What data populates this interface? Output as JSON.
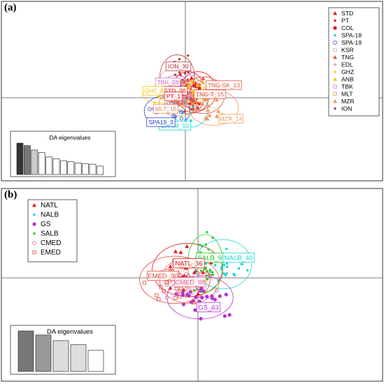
{
  "panels": [
    {
      "id": "a",
      "label": "(a)",
      "eig_title": "DA eigenvalues"
    },
    {
      "id": "b",
      "label": "(b)",
      "eig_title": "DA eigenvalues"
    }
  ],
  "chart_data": [
    {
      "panel": "(a)",
      "type": "scatter",
      "title": "",
      "legend_position": "top-right",
      "grid": false,
      "xlim": [
        -10,
        10
      ],
      "ylim": [
        -10,
        10
      ],
      "series": [
        {
          "name": "STD",
          "color": "#e41a1c",
          "marker": "triangle",
          "centroid": [
            0.3,
            0.6
          ],
          "ellipse": [
            1.8,
            2.4,
            0
          ]
        },
        {
          "name": "PT",
          "color": "#e41a1c",
          "marker": "dot",
          "centroid": [
            0.9,
            0.2
          ],
          "ellipse": [
            1.6,
            1.9,
            0
          ]
        },
        {
          "name": "COL",
          "color": "#e41a1c",
          "marker": "circle-filled",
          "centroid": [
            1.4,
            0.8
          ],
          "ellipse": [
            1.9,
            2.2,
            0
          ]
        },
        {
          "name": "SPA-18",
          "color": "#17d6d6",
          "marker": "dot",
          "centroid": [
            0.6,
            -1.5
          ],
          "ellipse": [
            1.8,
            1.9,
            0
          ]
        },
        {
          "name": "SPA-19",
          "color": "#2b3fd3",
          "marker": "circle-open",
          "centroid": [
            -2.0,
            -1.6
          ],
          "ellipse": [
            2.4,
            1.8,
            0
          ]
        },
        {
          "name": "KSR",
          "color": "#d8a0d8",
          "marker": "square-open",
          "centroid": [
            -0.8,
            1.6
          ],
          "ellipse": [
            2.1,
            2.0,
            0
          ]
        },
        {
          "name": "TNG",
          "color": "#e5533d",
          "marker": "triangle",
          "centroid": [
            2.0,
            0.3
          ],
          "ellipse": [
            2.2,
            2.1,
            0
          ]
        },
        {
          "name": "EDL",
          "color": "#f08080",
          "marker": "plus",
          "centroid": [
            0.5,
            0.5
          ],
          "ellipse": [
            1.5,
            1.5,
            0
          ]
        },
        {
          "name": "GHZ",
          "color": "#f5c518",
          "marker": "dot",
          "centroid": [
            -2.3,
            0.4
          ],
          "ellipse": [
            2.3,
            1.0,
            0
          ]
        },
        {
          "name": "ANB",
          "color": "#f5c518",
          "marker": "triangle",
          "centroid": [
            1.1,
            0.8
          ],
          "ellipse": [
            1.3,
            1.3,
            0
          ]
        },
        {
          "name": "TBK",
          "color": "#d070d0",
          "marker": "square-open",
          "centroid": [
            -1.0,
            1.0
          ],
          "ellipse": [
            1.6,
            1.6,
            0
          ]
        },
        {
          "name": "MLT",
          "color": "#e8905a",
          "marker": "square-open",
          "centroid": [
            -0.8,
            -0.7
          ],
          "ellipse": [
            2.0,
            1.4,
            0
          ]
        },
        {
          "name": "MZR",
          "color": "#f09a60",
          "marker": "triangle",
          "centroid": [
            3.1,
            -1.2
          ],
          "ellipse": [
            2.6,
            2.0,
            0
          ]
        },
        {
          "name": "ION",
          "color": "#c0393b",
          "marker": "dot",
          "centroid": [
            -0.9,
            2.6
          ],
          "ellipse": [
            1.8,
            2.4,
            0
          ]
        }
      ],
      "centroid_labels": [
        {
          "text": "ION_30",
          "series": "ION"
        },
        {
          "text": "TBK_28",
          "series": "TBK"
        },
        {
          "text": "STD_26",
          "series": "STD"
        },
        {
          "text": "GHZ_8",
          "series": "GHZ"
        },
        {
          "text": "ANB",
          "series": "ANB"
        },
        {
          "text": "TNG-SK_13",
          "series": "TNG"
        },
        {
          "text": "TNG-T_15",
          "series": "TNG"
        },
        {
          "text": "PT_1",
          "series": "PT"
        },
        {
          "text": "MLT_16",
          "series": "MLT"
        },
        {
          "text": "SPA18_10",
          "series": "SPA-18"
        },
        {
          "text": "SPA19_3",
          "series": "SPA-19"
        },
        {
          "text": "MZR_14",
          "series": "MZR"
        }
      ],
      "eigenvalues": {
        "title": "DA eigenvalues",
        "values": [
          1.0,
          0.92,
          0.78,
          0.7,
          0.56,
          0.5,
          0.44,
          0.41,
          0.37,
          0.35,
          0.33,
          0.27
        ],
        "colors": [
          "#333333",
          "#777777",
          "#cccccc",
          "#ffffff",
          "#ffffff",
          "#ffffff",
          "#ffffff",
          "#ffffff",
          "#ffffff",
          "#ffffff",
          "#ffffff",
          "#ffffff"
        ]
      }
    },
    {
      "panel": "(b)",
      "type": "scatter",
      "title": "",
      "legend_position": "top-left",
      "grid": false,
      "xlim": [
        -10,
        10
      ],
      "ylim": [
        -10,
        10
      ],
      "series": [
        {
          "name": "NATL",
          "color": "#e41a1c",
          "marker": "triangle",
          "centroid": [
            -1.0,
            0.8
          ],
          "ellipse": [
            3.2,
            2.6,
            0
          ]
        },
        {
          "name": "NALB",
          "color": "#17d6d6",
          "marker": "dot",
          "centroid": [
            2.4,
            1.4
          ],
          "ellipse": [
            2.6,
            2.4,
            0
          ]
        },
        {
          "name": "GS",
          "color": "#b233d6",
          "marker": "circle-filled",
          "centroid": [
            0.2,
            -2.0
          ],
          "ellipse": [
            3.0,
            2.1,
            0
          ]
        },
        {
          "name": "SALB",
          "color": "#22cc22",
          "marker": "dot",
          "centroid": [
            0.7,
            1.5
          ],
          "ellipse": [
            1.6,
            2.8,
            0
          ]
        },
        {
          "name": "CMED",
          "color": "#e85c8a",
          "marker": "circle-open",
          "centroid": [
            -0.8,
            -0.3
          ],
          "ellipse": [
            2.7,
            2.2,
            0
          ]
        },
        {
          "name": "EMED",
          "color": "#e04a3b",
          "marker": "square-open",
          "centroid": [
            -2.2,
            -0.2
          ],
          "ellipse": [
            3.2,
            2.3,
            0
          ]
        }
      ],
      "centroid_labels": [
        {
          "text": "SALB_9",
          "series": "SALB"
        },
        {
          "text": "NALB_40",
          "series": "NALB"
        },
        {
          "text": "NATL_36",
          "series": "NATL"
        },
        {
          "text": "EMED_30",
          "series": "EMED"
        },
        {
          "text": "CMED_88",
          "series": "CMED"
        },
        {
          "text": "GS_63",
          "series": "GS"
        }
      ],
      "eigenvalues": {
        "title": "DA eigenvalues",
        "values": [
          1.0,
          0.9,
          0.76,
          0.66,
          0.52
        ],
        "colors": [
          "#777777",
          "#999999",
          "#dddddd",
          "#dddddd",
          "#ffffff"
        ]
      }
    }
  ]
}
